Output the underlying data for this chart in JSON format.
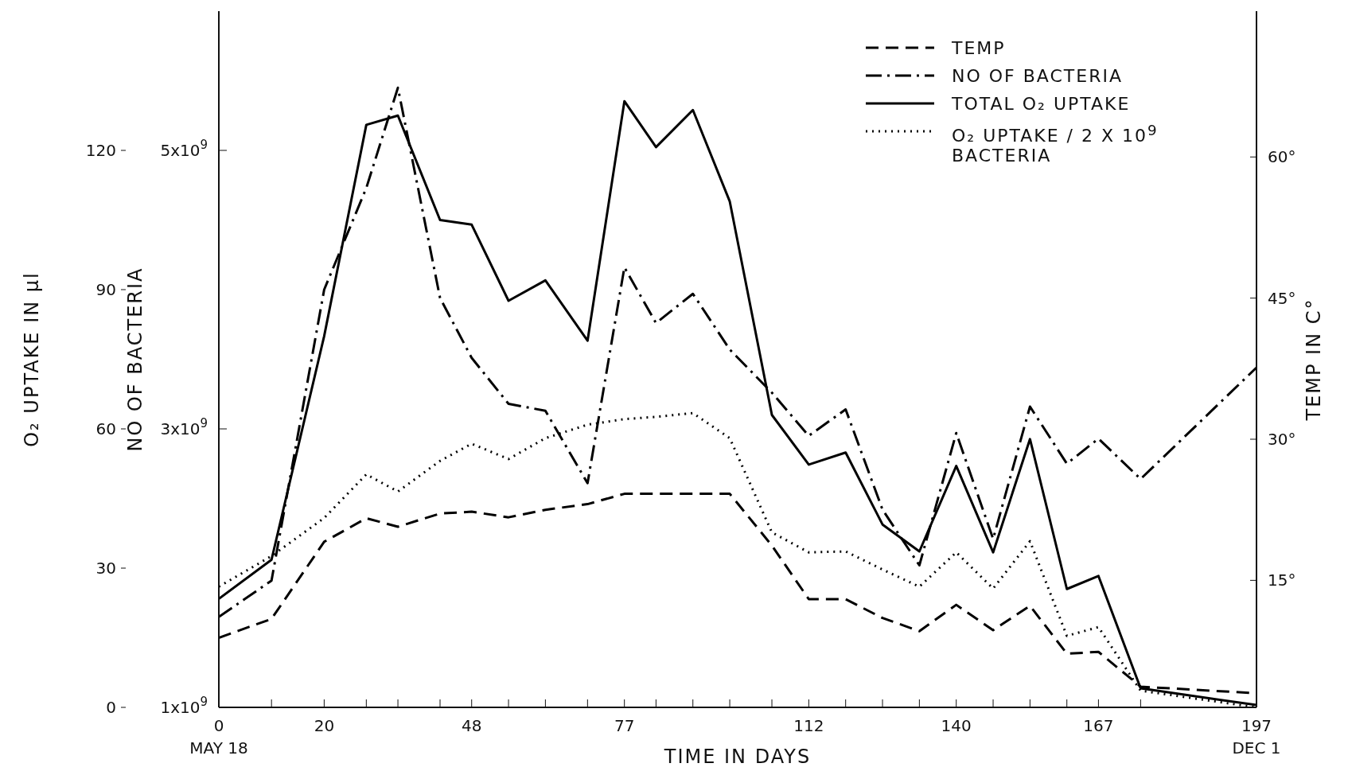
{
  "chart_data": {
    "type": "line",
    "xlabel": "TIME IN DAYS",
    "ylabel": "O₂ UPTAKE IN μl",
    "y3label": "NO OF BACTERIA",
    "y2label": "TEMP IN C°",
    "legend": "top right",
    "x": [
      0,
      10,
      20,
      28,
      34,
      42,
      48,
      55,
      62,
      70,
      77,
      83,
      90,
      97,
      105,
      112,
      119,
      126,
      133,
      140,
      147,
      154,
      161,
      167,
      175,
      197
    ],
    "xlim": [
      0,
      197
    ],
    "xticks": [
      {
        "value": 0,
        "label": "0\nMAY 18"
      },
      {
        "value": 10,
        "label": null
      },
      20,
      {
        "value": 28,
        "label": null
      },
      {
        "value": 34,
        "label": null
      },
      {
        "value": 42,
        "label": null
      },
      48,
      {
        "value": 55,
        "label": null
      },
      {
        "value": 62,
        "label": null
      },
      {
        "value": 70,
        "label": null
      },
      77,
      {
        "value": 83,
        "label": null
      },
      {
        "value": 90,
        "label": null
      },
      {
        "value": 97,
        "label": null
      },
      {
        "value": 105,
        "label": null
      },
      112,
      {
        "value": 119,
        "label": null
      },
      {
        "value": 126,
        "label": null
      },
      {
        "value": 133,
        "label": null
      },
      140,
      {
        "value": 147,
        "label": null
      },
      {
        "value": 154,
        "label": null
      },
      {
        "value": 161,
        "label": null
      },
      167,
      {
        "value": 175,
        "label": null
      },
      {
        "value": 197,
        "label": "197\nDEC 1"
      }
    ],
    "ylim": [
      0,
      150
    ],
    "yticks": [
      0,
      30,
      60,
      90,
      120
    ],
    "y3lim": [
      1000000000.0,
      6000000000.0
    ],
    "y3ticks": [
      {
        "value": 1000000000.0,
        "label": "1x10$^{9}$"
      },
      {
        "value": 3000000000.0,
        "label": "3x10$^{9}$"
      },
      {
        "value": 5000000000.0,
        "label": "5x10$^{9}$"
      }
    ],
    "y2lim": [
      1.5,
      75.5
    ],
    "y2ticks": [
      {
        "value": 15,
        "label": "15°"
      },
      {
        "value": 30,
        "label": "30°"
      },
      {
        "value": 45,
        "label": "45°"
      },
      {
        "value": 60,
        "label": "60°"
      }
    ],
    "series": [
      {
        "name": "TEMP",
        "color": "#000000",
        "axis": "y2",
        "line_style": "dashed",
        "values": [
          8.9,
          10.9,
          19.1,
          21.6,
          20.7,
          22.1,
          22.3,
          21.7,
          22.5,
          23.1,
          24.2,
          24.2,
          24.2,
          24.2,
          18.7,
          13,
          13,
          11,
          9.6,
          12.4,
          9.7,
          12.3,
          7.2,
          7.4,
          3.7,
          3
        ]
      },
      {
        "name": "NO OF BACTERIA",
        "color": "#000000",
        "axis": "y3",
        "line_style": "dashdot",
        "values": [
          1650000000.0,
          1910000000.0,
          4000000000.0,
          4730000000.0,
          5450000000.0,
          3940000000.0,
          3510000000.0,
          3180000000.0,
          3130000000.0,
          2610000000.0,
          4160000000.0,
          3760000000.0,
          3970000000.0,
          3570000000.0,
          3260000000.0,
          2950000000.0,
          3140000000.0,
          2420000000.0,
          2020000000.0,
          2970000000.0,
          2210000000.0,
          3160000000.0,
          2750000000.0,
          2930000000.0,
          2640000000.0,
          3440000000.0
        ]
      },
      {
        "name": "TOTAL O₂ UPTAKE",
        "color": "#000000",
        "axis": "y",
        "line_style": "solid",
        "values": [
          23.4,
          31.8,
          80,
          125.5,
          127.5,
          105,
          104,
          87.6,
          92,
          79,
          130.6,
          120.7,
          128.7,
          109,
          63,
          52.3,
          54.9,
          39.4,
          33.6,
          52,
          33.4,
          57.8,
          25.5,
          28.3,
          4.1,
          0.5
        ]
      },
      {
        "name": "O₂ UPTAKE / 2 X 10$^{9}$ BACTERIA",
        "color": "#000000",
        "axis": "y",
        "line_style": "dotted",
        "values": [
          26,
          32.6,
          40.8,
          50.2,
          46.5,
          53.1,
          56.8,
          53.5,
          58,
          60.9,
          62.1,
          62.6,
          63.4,
          58,
          37.7,
          33.4,
          33.6,
          29.7,
          26,
          33.4,
          25.6,
          35.8,
          15.4,
          17.3,
          3.6,
          0
        ]
      }
    ]
  }
}
